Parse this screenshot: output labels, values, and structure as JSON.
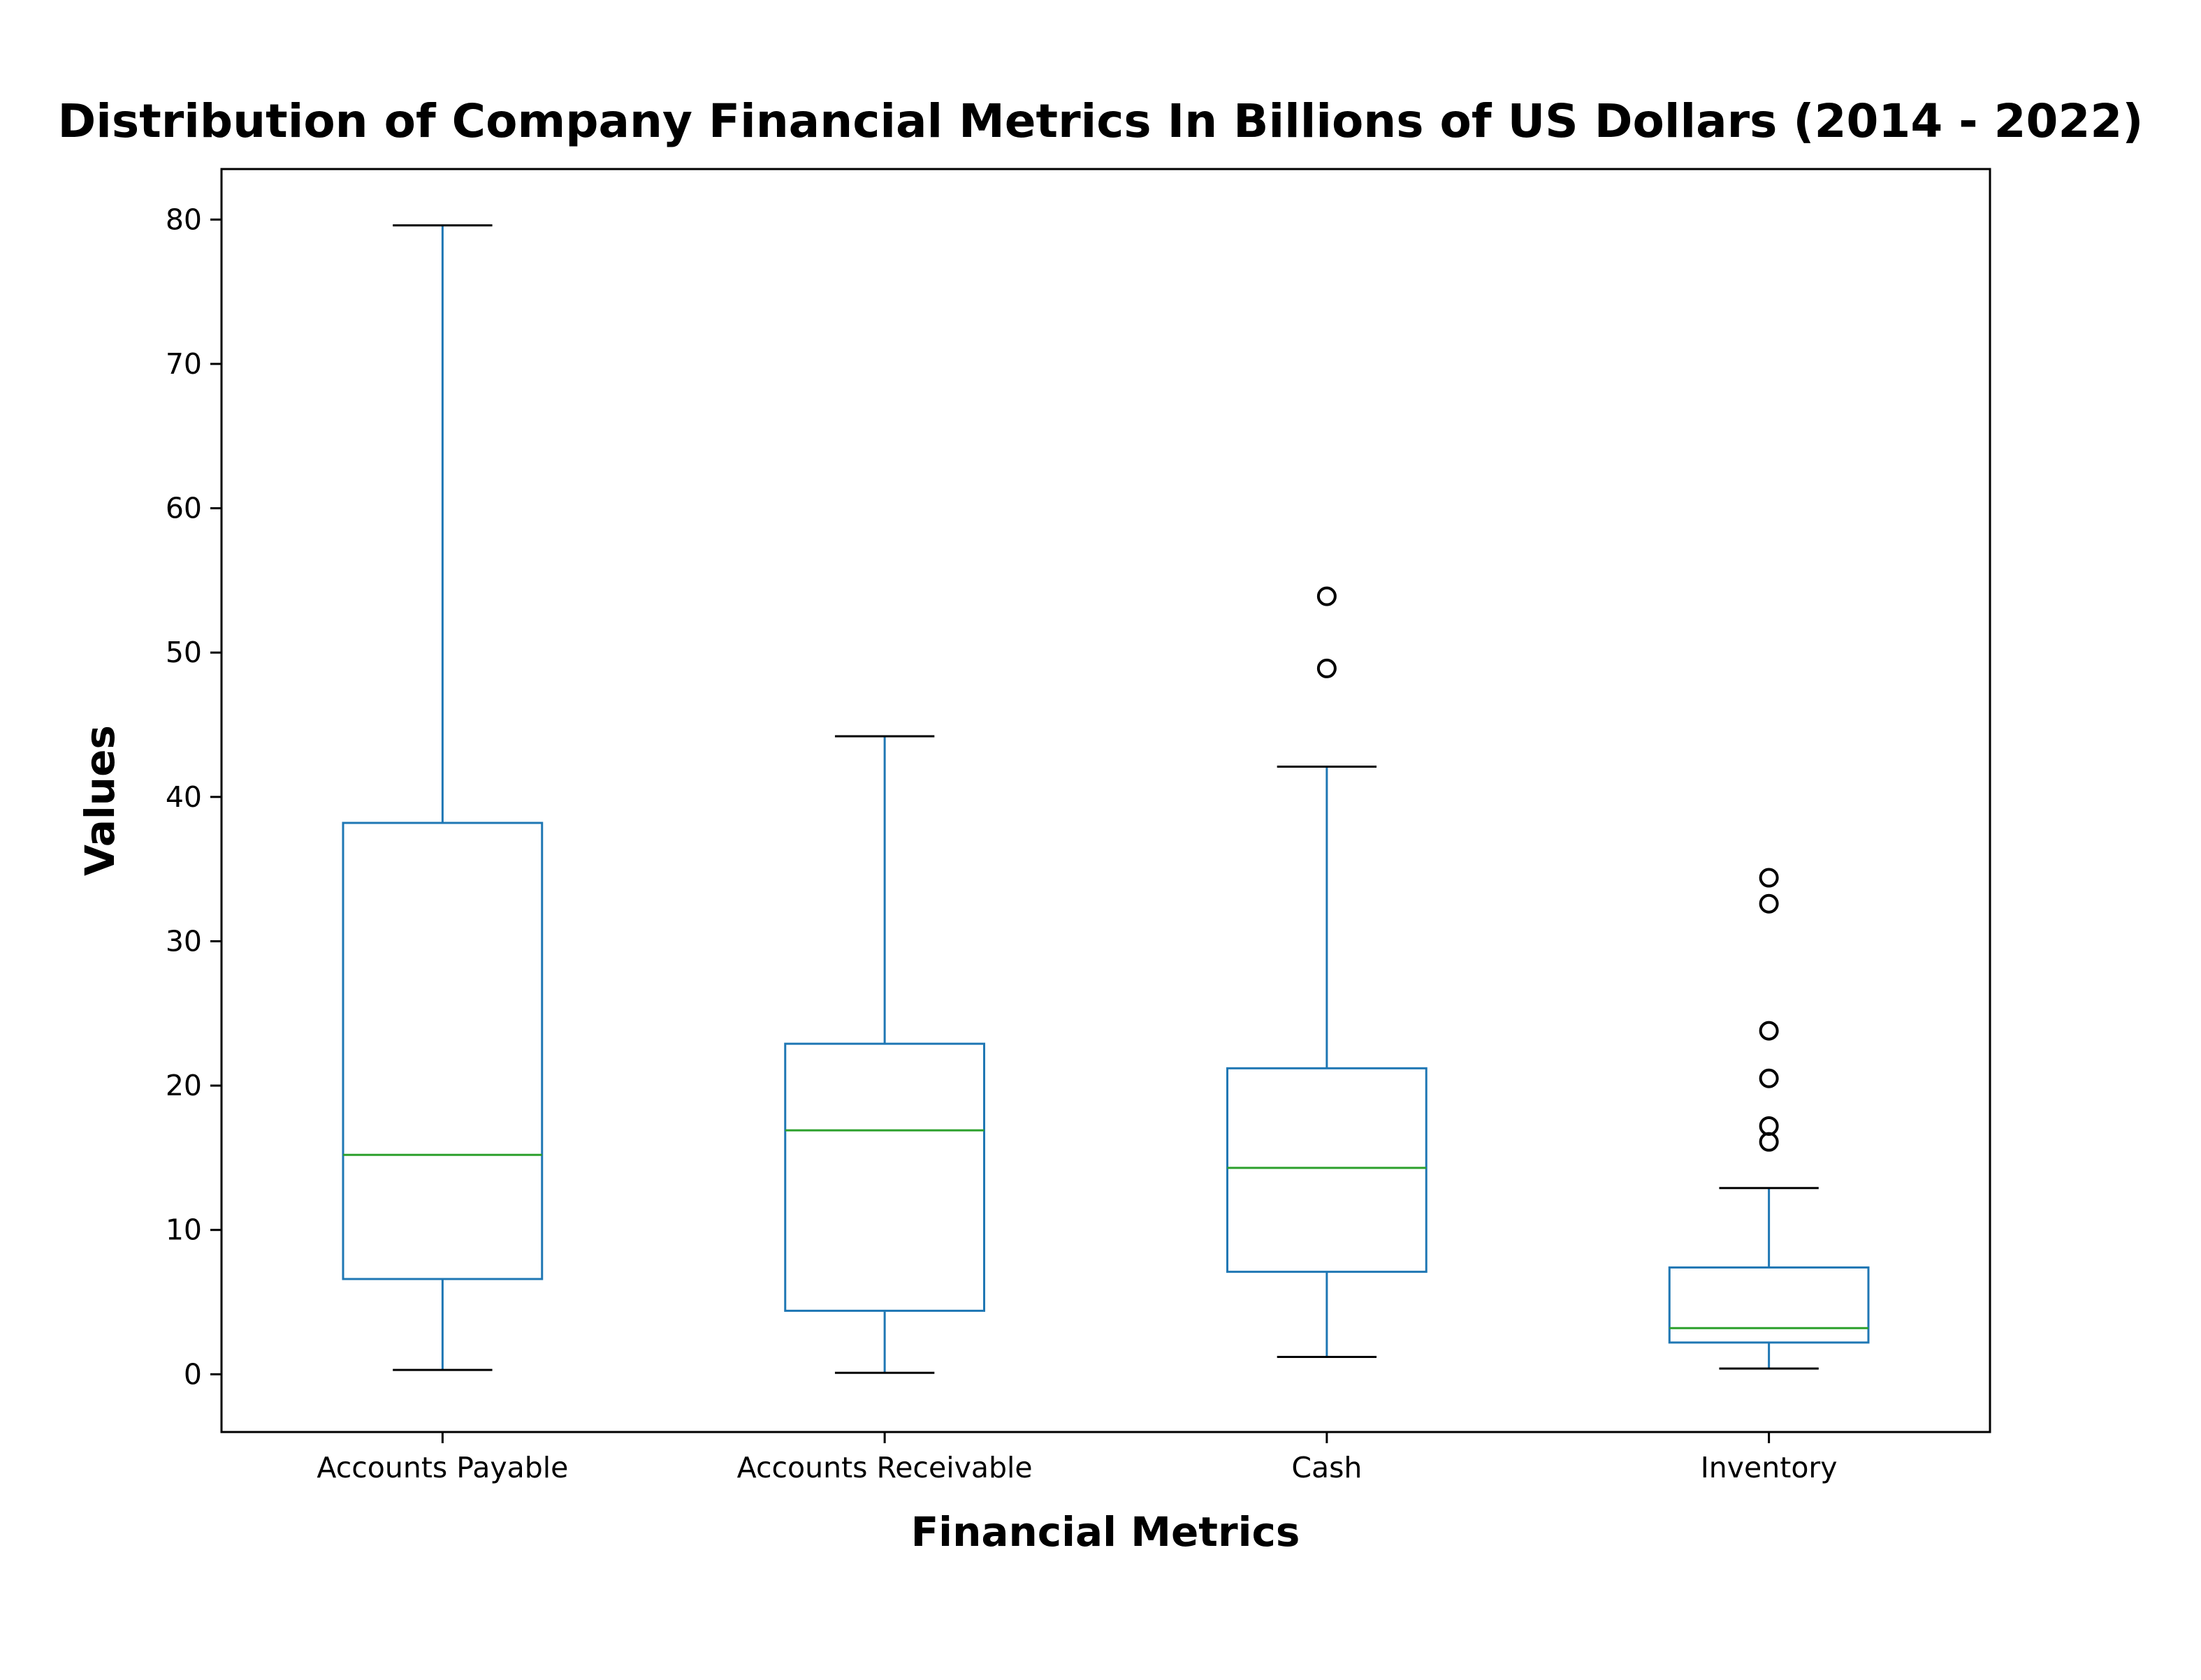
{
  "chart_data": {
    "type": "box",
    "title": "Distribution of Company Financial Metrics In Billions of US Dollars (2014 - 2022)",
    "xlabel": "Financial Metrics",
    "ylabel": "Values",
    "ylim": [
      -4,
      83.5
    ],
    "yticks": [
      0,
      10,
      20,
      30,
      40,
      50,
      60,
      70,
      80
    ],
    "grid": false,
    "legend": "none",
    "categories": [
      "Accounts Payable",
      "Accounts Receivable",
      "Cash",
      "Inventory"
    ],
    "boxes": [
      {
        "category": "Accounts Payable",
        "whisker_low": 0.3,
        "q1": 6.6,
        "median": 15.2,
        "q3": 38.2,
        "whisker_high": 79.6,
        "outliers": []
      },
      {
        "category": "Accounts Receivable",
        "whisker_low": 0.1,
        "q1": 4.4,
        "median": 16.9,
        "q3": 22.9,
        "whisker_high": 44.2,
        "outliers": []
      },
      {
        "category": "Cash",
        "whisker_low": 1.2,
        "q1": 7.1,
        "median": 14.3,
        "q3": 21.2,
        "whisker_high": 42.1,
        "outliers": [
          48.9,
          53.9
        ]
      },
      {
        "category": "Inventory",
        "whisker_low": 0.4,
        "q1": 2.2,
        "median": 3.2,
        "q3": 7.4,
        "whisker_high": 12.9,
        "outliers": [
          16.1,
          17.2,
          20.5,
          23.8,
          32.6,
          34.4
        ]
      }
    ],
    "colors": {
      "box": "#1f77b4",
      "median": "#2ca02c",
      "caps": "#000000",
      "outlier": "#000000",
      "axes": "#000000"
    }
  }
}
